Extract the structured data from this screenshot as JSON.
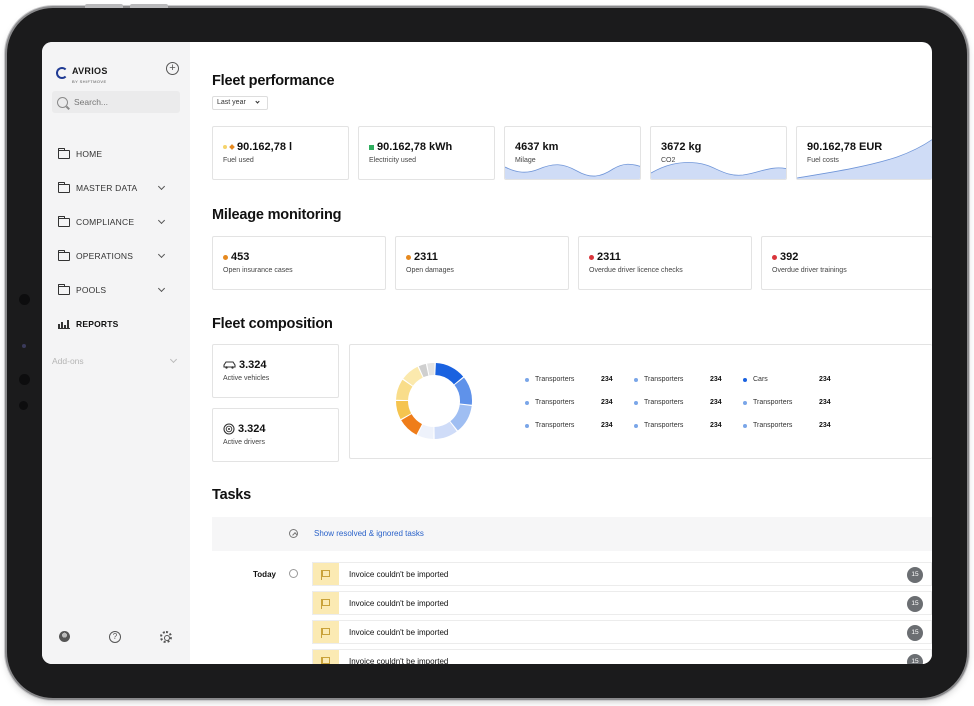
{
  "brand": {
    "name": "AVRIOS",
    "tagline": "BY SHIFTMOVE"
  },
  "search": {
    "placeholder": "Search..."
  },
  "sidebar": {
    "items": [
      {
        "label": "HOME",
        "icon": "folder-icon",
        "has_chevron": false
      },
      {
        "label": "MASTER DATA",
        "icon": "folder-icon",
        "has_chevron": true
      },
      {
        "label": "COMPLIANCE",
        "icon": "folder-icon",
        "has_chevron": true
      },
      {
        "label": "OPERATIONS",
        "icon": "folder-icon",
        "has_chevron": true
      },
      {
        "label": "POOLS",
        "icon": "folder-icon",
        "has_chevron": true
      },
      {
        "label": "REPORTS",
        "icon": "bar-chart-icon",
        "has_chevron": false,
        "active": true
      }
    ],
    "addons_label": "Add-ons",
    "footer": {
      "help_glyph": "?"
    }
  },
  "fleet_performance": {
    "title": "Fleet performance",
    "period": "Last year",
    "cards": [
      {
        "value": "90.162,78 l",
        "caption": "Fuel used",
        "markers": [
          "#f5d36b",
          "#e6891f"
        ]
      },
      {
        "value": "90.162,78 kWh",
        "caption": "Electricity used",
        "markers": [
          "#2fae5f"
        ]
      },
      {
        "value": "4637 km",
        "caption": "Milage",
        "sparkline": true
      },
      {
        "value": "3672 kg",
        "caption": "CO2",
        "sparkline": true
      },
      {
        "value": "90.162,78 EUR",
        "caption": "Fuel costs",
        "sparkline": true
      }
    ]
  },
  "mileage_monitoring": {
    "title": "Mileage monitoring",
    "cards": [
      {
        "value": "453",
        "caption": "Open insurance cases",
        "color": "#e6891f"
      },
      {
        "value": "2311",
        "caption": "Open damages",
        "color": "#e6891f"
      },
      {
        "value": "2311",
        "caption": "Overdue driver licence checks",
        "color": "#d9353b"
      },
      {
        "value": "392",
        "caption": "Overdue driver trainings",
        "color": "#d9353b"
      }
    ]
  },
  "fleet_composition": {
    "title": "Fleet composition",
    "vehicles": {
      "value": "3.324",
      "caption": "Active vehicles"
    },
    "drivers": {
      "value": "3.324",
      "caption": "Active drivers"
    },
    "legend": [
      [
        {
          "label": "Transporters",
          "value": "234",
          "color": "#7aa6e8"
        },
        {
          "label": "Transporters",
          "value": "234",
          "color": "#7aa6e8"
        },
        {
          "label": "Cars",
          "value": "234",
          "color": "#1a62e0"
        }
      ],
      [
        {
          "label": "Transporters",
          "value": "234",
          "color": "#7aa6e8"
        },
        {
          "label": "Transporters",
          "value": "234",
          "color": "#7aa6e8"
        },
        {
          "label": "Transporters",
          "value": "234",
          "color": "#7aa6e8"
        }
      ],
      [
        {
          "label": "Transporters",
          "value": "234",
          "color": "#7aa6e8"
        },
        {
          "label": "Transporters",
          "value": "234",
          "color": "#7aa6e8"
        },
        {
          "label": "Transporters",
          "value": "234",
          "color": "#7aa6e8"
        }
      ]
    ]
  },
  "tasks": {
    "title": "Tasks",
    "show_resolved_label": "Show resolved & ignored tasks",
    "group_label": "Today",
    "items": [
      {
        "title": "Invoice couldn't be imported",
        "count": "15"
      },
      {
        "title": "Invoice couldn't be imported",
        "count": "15"
      },
      {
        "title": "Invoice couldn't be imported",
        "count": "15"
      },
      {
        "title": "Invoice couldn't be imported",
        "count": "15"
      }
    ]
  },
  "colors": {
    "accent_blue": "#2a62c9",
    "sparkline_fill": "#cfdcf6",
    "sparkline_stroke": "#6f95d8",
    "donut_segments": [
      "#1a62e0",
      "#5f92ea",
      "#9fbef2",
      "#cfdcf8",
      "#eef2fb",
      "#ef7d1a",
      "#f5c44f",
      "#f9dd8a",
      "#fbe9ad",
      "#cfcfcf",
      "#e3e3e3"
    ]
  }
}
